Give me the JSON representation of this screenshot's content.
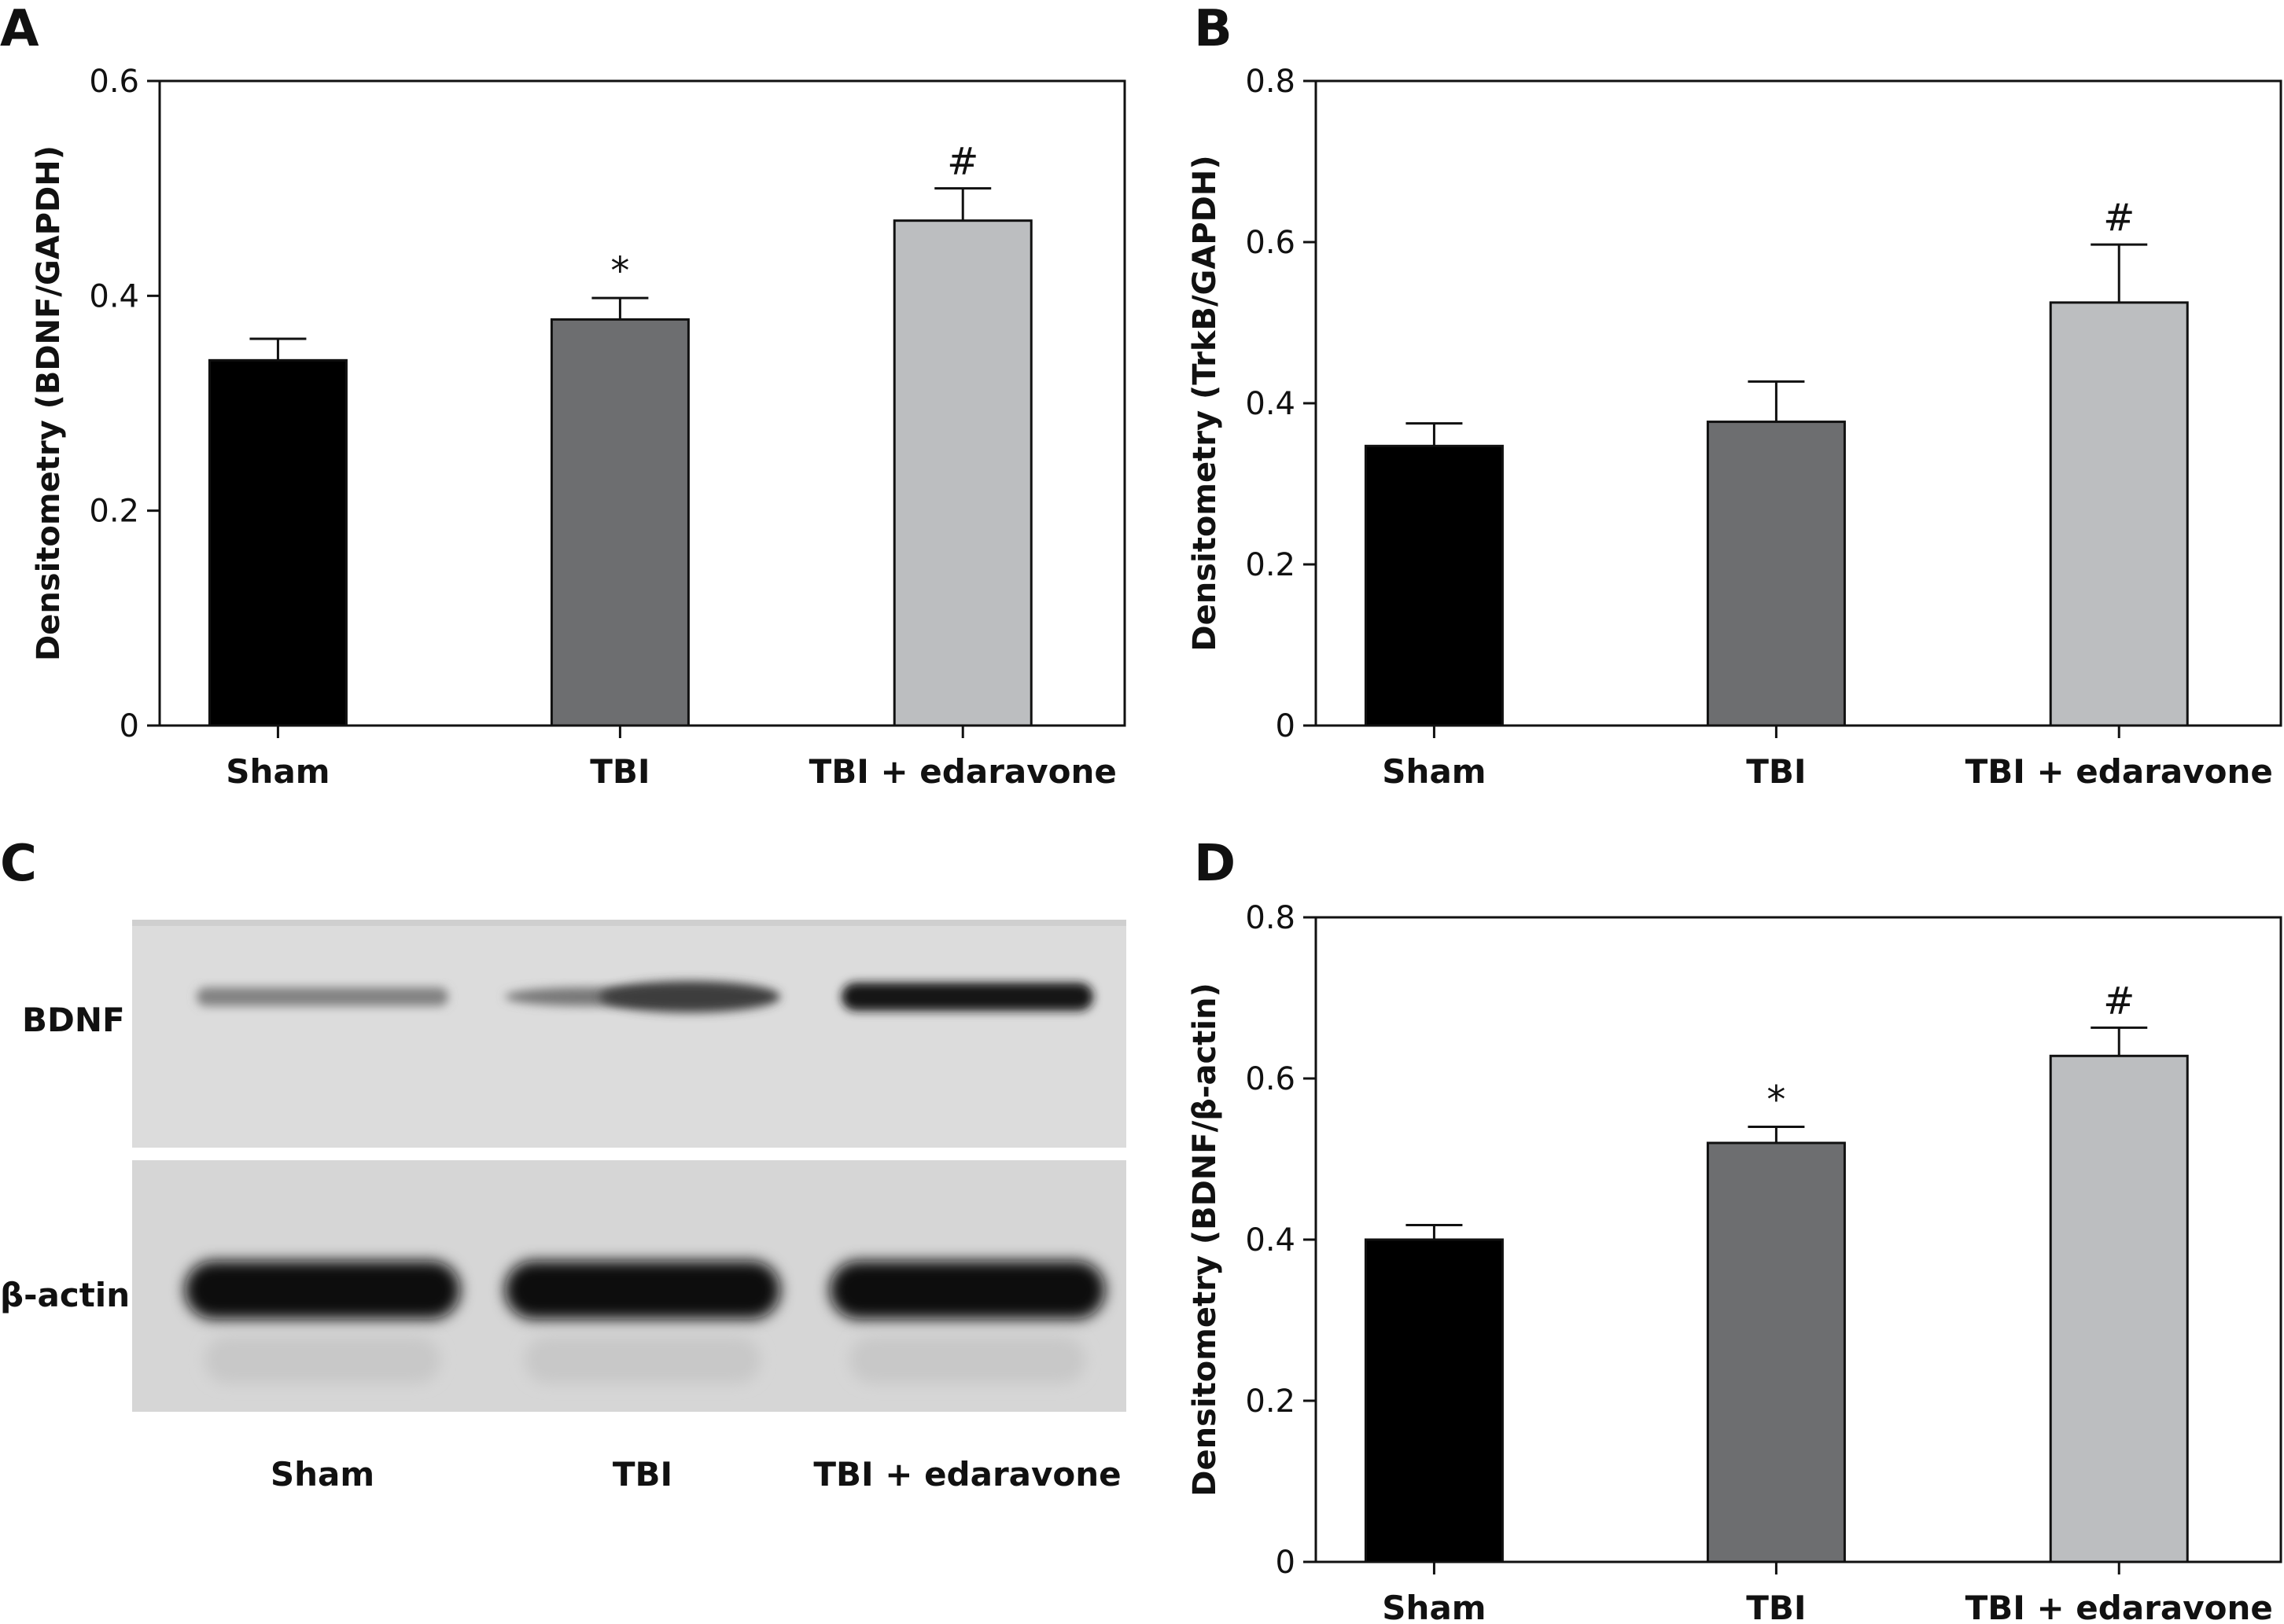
{
  "chart_data": [
    {
      "panel": "A",
      "type": "bar",
      "categories": [
        "Sham",
        "TBI",
        "TBI + edaravone"
      ],
      "values": [
        0.34,
        0.378,
        0.47
      ],
      "errors": [
        0.02,
        0.02,
        0.03
      ],
      "significance": [
        "",
        "*",
        "#"
      ],
      "ylabel": "Densitometry (BDNF/GAPDH)",
      "ylim": [
        0,
        0.6
      ],
      "yticks": [
        0,
        0.2,
        0.4,
        0.6
      ],
      "ytick_labels": [
        "0",
        "0.2",
        "0.4",
        "0.6"
      ],
      "colors": [
        "#000000",
        "#6d6e70",
        "#bcbec0"
      ]
    },
    {
      "panel": "B",
      "type": "bar",
      "categories": [
        "Sham",
        "TBI",
        "TBI + edaravone"
      ],
      "values": [
        0.347,
        0.377,
        0.525
      ],
      "errors": [
        0.028,
        0.05,
        0.072
      ],
      "significance": [
        "",
        "",
        "#"
      ],
      "ylabel": "Densitometry (TrkB/GAPDH)",
      "ylim": [
        0,
        0.8
      ],
      "yticks": [
        0,
        0.2,
        0.4,
        0.6,
        0.8
      ],
      "ytick_labels": [
        "0",
        "0.2",
        "0.4",
        "0.6",
        "0.8"
      ],
      "colors": [
        "#000000",
        "#6d6e70",
        "#bcbec0"
      ]
    },
    {
      "panel": "D",
      "type": "bar",
      "categories": [
        "Sham",
        "TBI",
        "TBI + edaravone"
      ],
      "values": [
        0.4,
        0.52,
        0.628
      ],
      "errors": [
        0.018,
        0.02,
        0.035
      ],
      "significance": [
        "",
        "*",
        "#"
      ],
      "ylabel": "Densitometry (BDNF/β-actin)",
      "ylim": [
        0,
        0.8
      ],
      "yticks": [
        0,
        0.2,
        0.4,
        0.6,
        0.8
      ],
      "ytick_labels": [
        "0",
        "0.2",
        "0.4",
        "0.6",
        "0.8"
      ],
      "colors": [
        "#000000",
        "#6d6e70",
        "#bcbec0"
      ]
    }
  ],
  "blot": {
    "panel": "C",
    "rows": [
      "BDNF",
      "β-actin"
    ],
    "lanes": [
      "Sham",
      "TBI",
      "TBI + edaravone"
    ],
    "bdnf_intensity": [
      0.35,
      0.7,
      0.9
    ],
    "actin_intensity": [
      0.95,
      0.95,
      0.95
    ]
  }
}
